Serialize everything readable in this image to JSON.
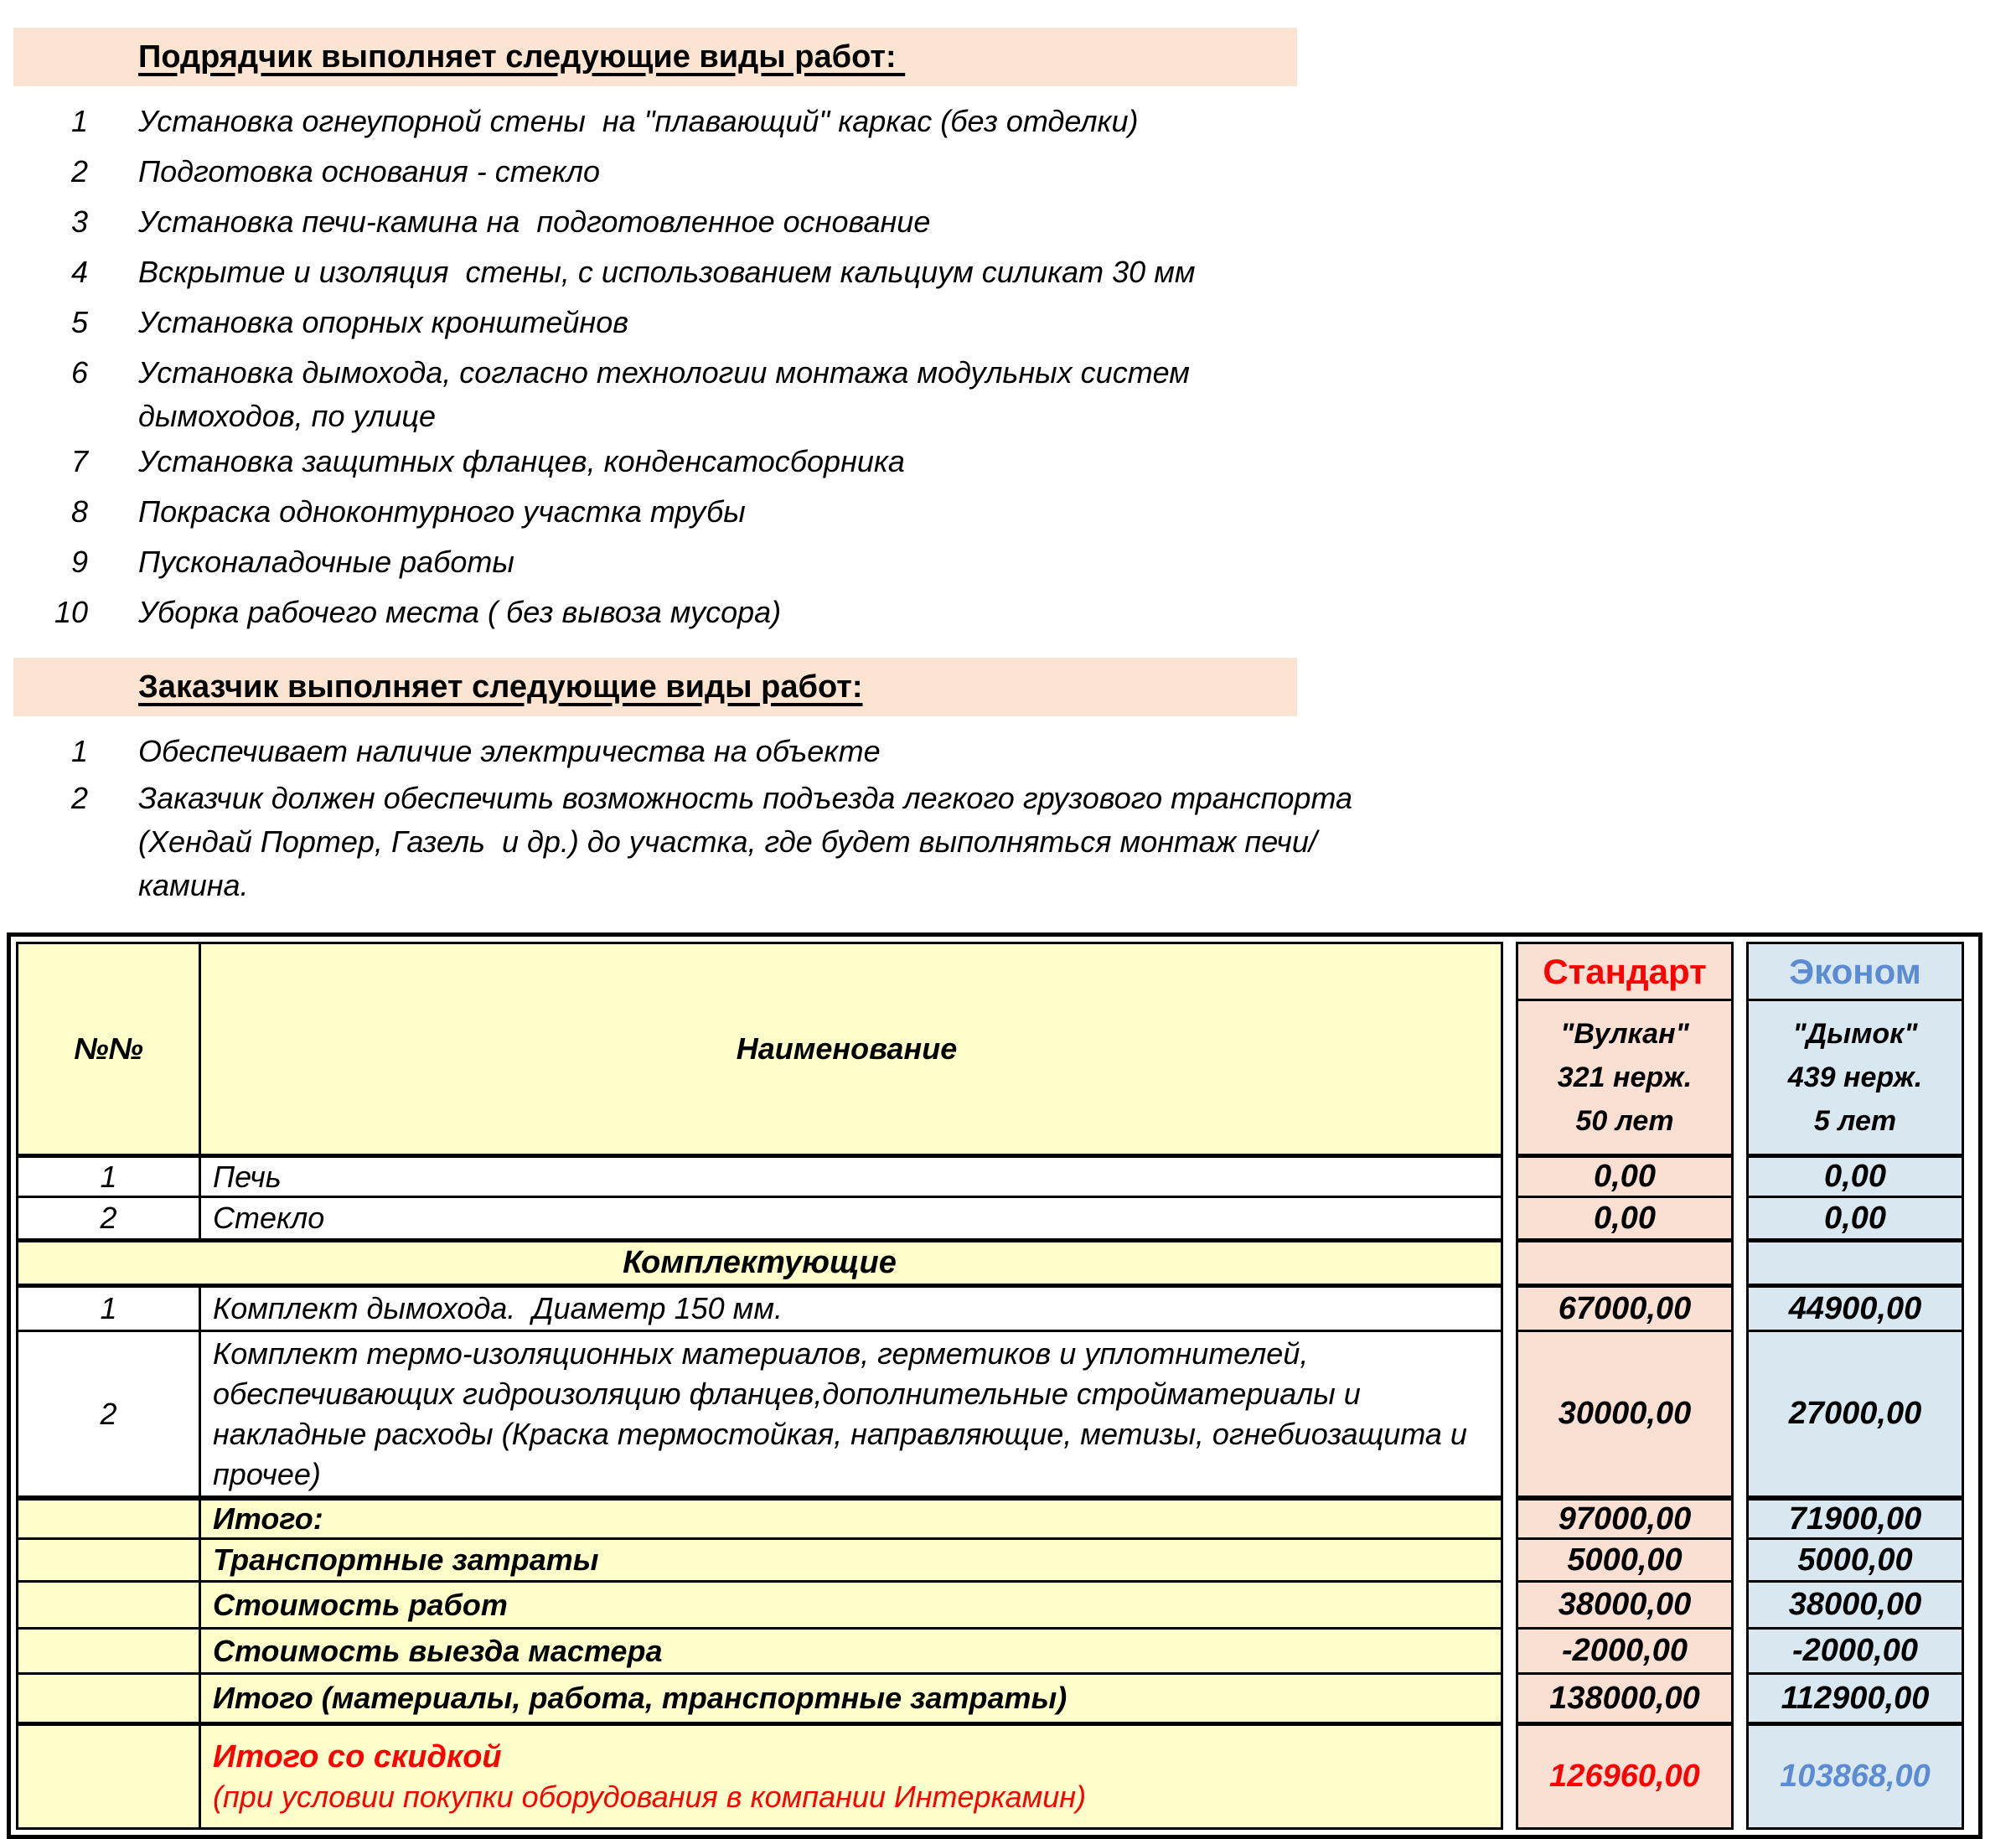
{
  "colors": {
    "band_bg": "#FBE5D2",
    "yellow_bg": "#FFFFCC",
    "standard_bg": "#F9E0D2",
    "econom_bg": "#D8E7F0",
    "standard_accent": "#FF0000",
    "econom_accent": "#5B8BD0"
  },
  "section1": {
    "title": "Подрядчик выполняет следующие виды работ: ",
    "items": [
      {
        "num": "1",
        "text": "Установка огнеупорной стены  на \"плавающий\" каркас (без отделки)"
      },
      {
        "num": "2",
        "text": "Подготовка основания - стекло"
      },
      {
        "num": "3",
        "text": "Установка печи-камина на  подготовленное основание"
      },
      {
        "num": "4",
        "text": "Вскрытие и изоляция  стены, с использованием кальциум силикат 30 мм"
      },
      {
        "num": "5",
        "text": "Установка опорных кронштейнов"
      },
      {
        "num": "6",
        "text": "Установка дымохода, согласно технологии монтажа модульных систем дымоходов, по улице"
      },
      {
        "num": "7",
        "text": "Установка защитных фланцев, конденсатосборника"
      },
      {
        "num": "8",
        "text": "Покраска одноконтурного участка трубы"
      },
      {
        "num": "9",
        "text": "Пусконаладочные работы"
      },
      {
        "num": "10",
        "text": "Уборка рабочего места ( без вывоза мусора)"
      }
    ]
  },
  "section2": {
    "title": "Заказчик выполняет следующие виды работ:",
    "items": [
      {
        "num": "1",
        "text": "Обеспечивает наличие электричества на объекте"
      },
      {
        "num": "2",
        "text": "Заказчик должен обеспечить возможность подъезда легкого грузового транспорта (Хендай Портер, Газель  и др.) до участка, где будет выполняться монтаж печи/камина."
      }
    ]
  },
  "table": {
    "num_header": "№№",
    "name_header": "Наименование",
    "standard": {
      "title": "Стандарт",
      "sub_lines": [
        "\"Вулкан\"",
        "321 нерж.",
        "50 лет"
      ]
    },
    "econom": {
      "title": "Эконом",
      "sub_lines": [
        "\"Дымок\"",
        "439 нерж.",
        "5 лет"
      ]
    },
    "rows": [
      {
        "num": "1",
        "name": "Печь",
        "std": "0,00",
        "eco": "0,00"
      },
      {
        "num": "2",
        "name": "Стекло",
        "std": "0,00",
        "eco": "0,00"
      },
      {
        "num": "",
        "name": "Комплектующие",
        "std": "",
        "eco": ""
      },
      {
        "num": "1",
        "name": "Комплект дымохода.  Диаметр 150 мм.",
        "std": "67000,00",
        "eco": "44900,00"
      },
      {
        "num": "2",
        "name": "Комплект термо-изоляционных материалов, герметиков и уплотнителей, обеспечивающих гидроизоляцию фланцев,дополнительные стройматериалы и накладные расходы (Краска термостойкая, направляющие, метизы, огнебиозащита и прочее)",
        "std": "30000,00",
        "eco": "27000,00"
      },
      {
        "num": "",
        "name": "Итого:",
        "std": "97000,00",
        "eco": "71900,00"
      },
      {
        "num": "",
        "name": "Транспортные затраты",
        "std": "5000,00",
        "eco": "5000,00"
      },
      {
        "num": "",
        "name": "Стоимость работ",
        "std": "38000,00",
        "eco": "38000,00"
      },
      {
        "num": "",
        "name": "Стоимость выезда мастера",
        "std": "-2000,00",
        "eco": "-2000,00"
      },
      {
        "num": "",
        "name": "Итого (материалы, работа, транспортные затраты)",
        "std": "138000,00",
        "eco": "112900,00"
      },
      {
        "num": "",
        "name": "Итого со скидкой",
        "name2": "(при условии покупки оборудования в компании Интеркамин)",
        "std": "126960,00",
        "eco": "103868,00"
      }
    ]
  }
}
